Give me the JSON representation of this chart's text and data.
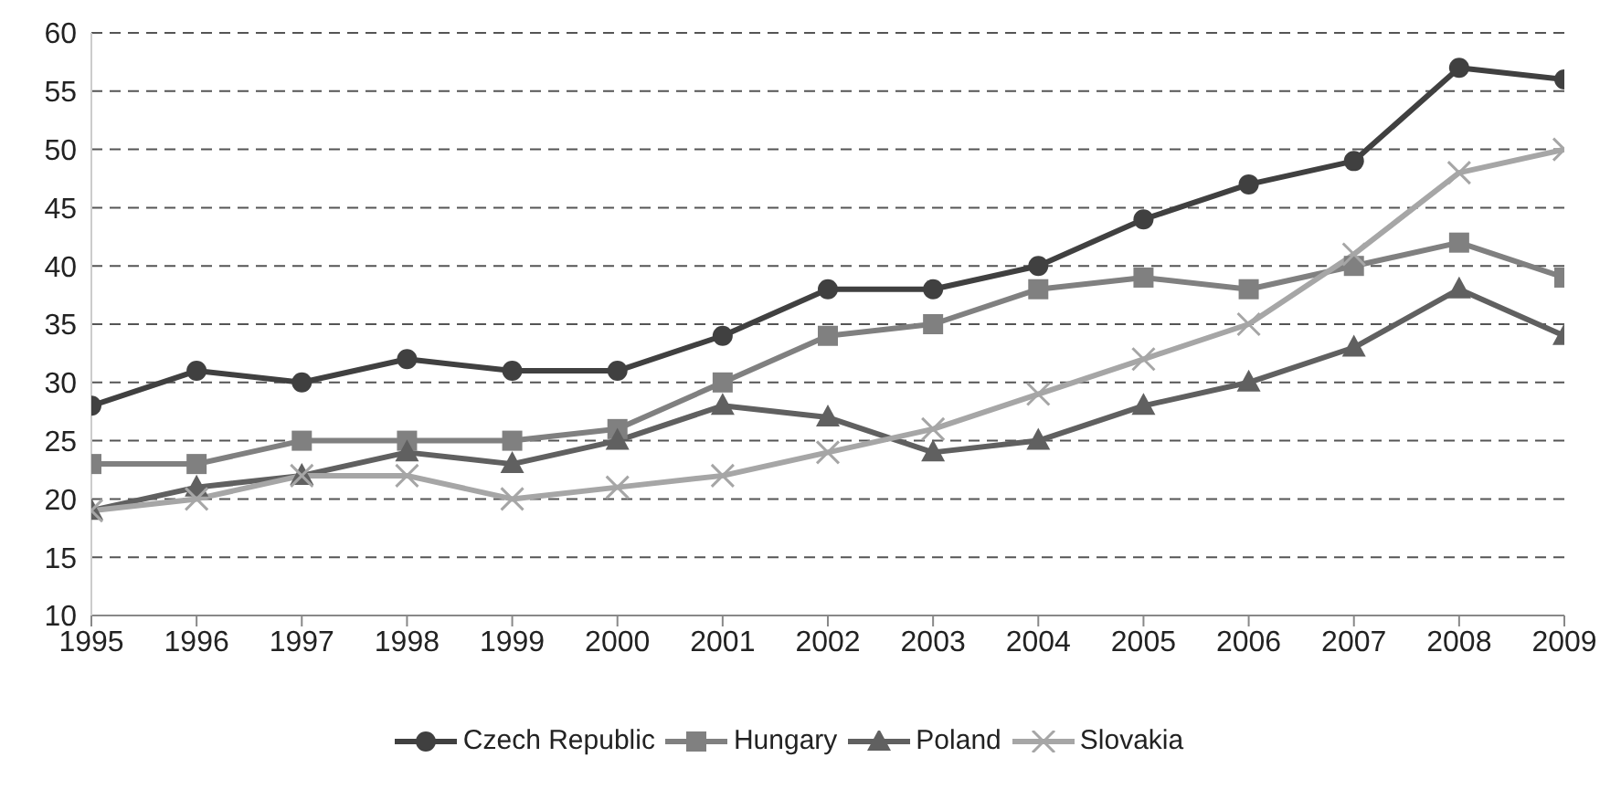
{
  "chart_data": {
    "type": "line",
    "categories": [
      "1995",
      "1996",
      "1997",
      "1998",
      "1999",
      "2000",
      "2001",
      "2002",
      "2003",
      "2004",
      "2005",
      "2006",
      "2007",
      "2008",
      "2009"
    ],
    "ylim": [
      10,
      60
    ],
    "yticks": [
      10,
      15,
      20,
      25,
      30,
      35,
      40,
      45,
      50,
      55,
      60
    ],
    "grid": "y",
    "legend": "bottom",
    "line_style": "solid",
    "series": [
      {
        "name": "Czech Republic",
        "color": "#404040",
        "marker": "circle",
        "values": [
          28,
          31,
          30,
          32,
          31,
          31,
          34,
          38,
          38,
          40,
          44,
          47,
          49,
          57,
          56
        ]
      },
      {
        "name": "Hungary",
        "color": "#808080",
        "marker": "square",
        "values": [
          23,
          23,
          25,
          25,
          25,
          26,
          30,
          34,
          35,
          38,
          39,
          38,
          40,
          42,
          39
        ]
      },
      {
        "name": "Poland",
        "color": "#606060",
        "marker": "triangle",
        "values": [
          19,
          21,
          22,
          24,
          23,
          25,
          28,
          27,
          24,
          25,
          28,
          30,
          33,
          38,
          34
        ]
      },
      {
        "name": "Slovakia",
        "color": "#a6a6a6",
        "marker": "cross",
        "values": [
          19,
          20,
          22,
          22,
          20,
          21,
          22,
          24,
          26,
          29,
          32,
          35,
          41,
          48,
          50
        ]
      }
    ]
  }
}
